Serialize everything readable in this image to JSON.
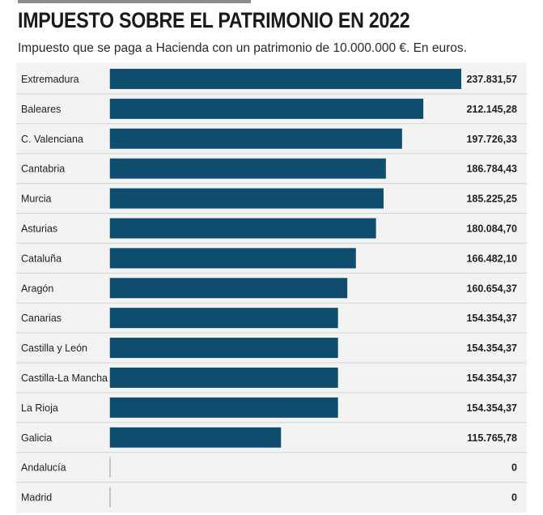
{
  "header": {
    "title": "IMPUESTO SOBRE EL PATRIMONIO EN 2022",
    "subtitle": "Impuesto que se paga a Hacienda con un patrimonio de 10.000.000 €. En euros."
  },
  "chart_data": {
    "type": "bar",
    "orientation": "horizontal",
    "title": "IMPUESTO SOBRE EL PATRIMONIO EN 2022",
    "subtitle": "Impuesto que se paga a Hacienda con un patrimonio de 10.000.000 €. En euros.",
    "bar_color": "#0f4d6e",
    "categories": [
      "Extremadura",
      "Baleares",
      "C. Valenciana",
      "Cantabria",
      "Murcia",
      "Asturias",
      "Cataluña",
      "Aragón",
      "Canarias",
      "Castilla y León",
      "Castilla-La Mancha",
      "La Rioja",
      "Galicia",
      "Andalucía",
      "Madrid"
    ],
    "values": [
      237831.57,
      212145.28,
      197726.33,
      186784.43,
      185225.25,
      180084.7,
      166482.1,
      160654.37,
      154354.37,
      154354.37,
      154354.37,
      154354.37,
      115765.78,
      0,
      0
    ],
    "value_labels": [
      "237.831,57",
      "212.145,28",
      "197.726,33",
      "186.784,43",
      "185.225,25",
      "180.084,70",
      "166.482,10",
      "160.654,37",
      "154.354,37",
      "154.354,37",
      "154.354,37",
      "154.354,37",
      "115.765,78",
      "0",
      "0"
    ],
    "xlim": [
      0,
      237831.57
    ],
    "grid": false,
    "legend": "none"
  }
}
